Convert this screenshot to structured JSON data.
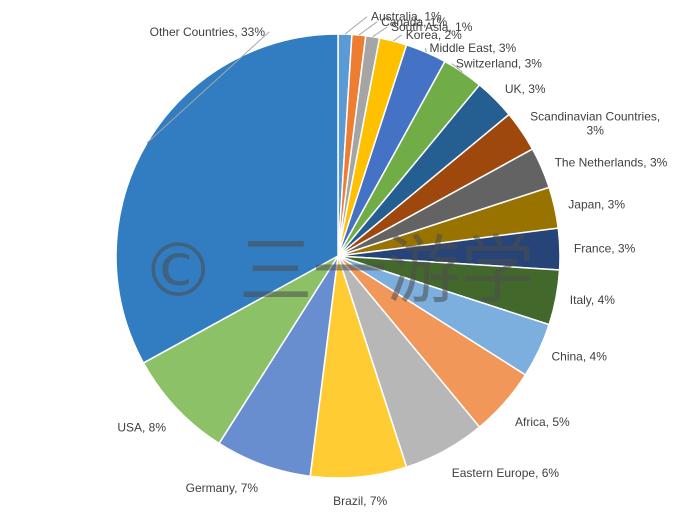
{
  "chart_data": {
    "type": "pie",
    "start_angle_deg": 0,
    "direction": "clockwise",
    "slices": [
      {
        "label": "Australia, 1%",
        "value": 1,
        "color": "#5b9bd5"
      },
      {
        "label": "Canada, 1%",
        "value": 1,
        "color": "#ed7d31"
      },
      {
        "label": "South Asia, 1%",
        "value": 1,
        "color": "#a5a5a5"
      },
      {
        "label": "Korea, 2%",
        "value": 2,
        "color": "#ffc000"
      },
      {
        "label": "Middle East, 3%",
        "value": 3,
        "color": "#4472c4"
      },
      {
        "label": "Switzerland, 3%",
        "value": 3,
        "color": "#70ad47"
      },
      {
        "label": "UK, 3%",
        "value": 3,
        "color": "#255e91"
      },
      {
        "label": "Scandinavian Countries, 3%",
        "lines": [
          "Scandinavian Countries,",
          "3%"
        ],
        "value": 3,
        "color": "#9e480e"
      },
      {
        "label": "The Netherlands, 3%",
        "value": 3,
        "color": "#636363"
      },
      {
        "label": "Japan, 3%",
        "value": 3,
        "color": "#997300"
      },
      {
        "label": "France, 3%",
        "value": 3,
        "color": "#264478"
      },
      {
        "label": "Italy, 4%",
        "value": 4,
        "color": "#43682b"
      },
      {
        "label": "China, 4%",
        "value": 4,
        "color": "#7cafdd"
      },
      {
        "label": "Africa, 5%",
        "value": 5,
        "color": "#f1975a"
      },
      {
        "label": "Eastern Europe, 6%",
        "value": 6,
        "color": "#b7b7b7"
      },
      {
        "label": "Brazil, 7%",
        "value": 7,
        "color": "#ffcd33"
      },
      {
        "label": "Germany, 7%",
        "value": 7,
        "color": "#698ed0"
      },
      {
        "label": "USA, 8%",
        "value": 8,
        "color": "#8cc168"
      },
      {
        "label": "Other Countries, 33%",
        "value": 33,
        "color": "#327dc2"
      }
    ]
  },
  "watermark": "© 三一游学"
}
